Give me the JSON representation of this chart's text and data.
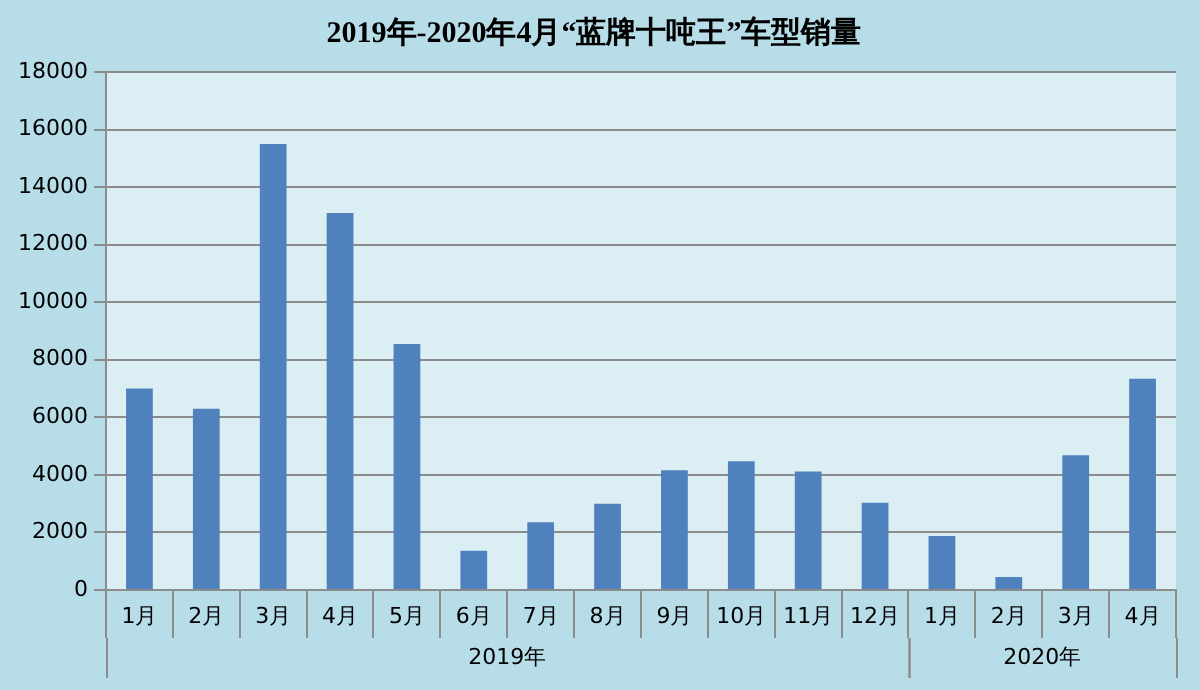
{
  "chart_data": {
    "type": "bar",
    "title": "2019年-2020年4月“蓝牌十吨王”车型销量",
    "categories": [
      "1月",
      "2月",
      "3月",
      "4月",
      "5月",
      "6月",
      "7月",
      "8月",
      "9月",
      "10月",
      "11月",
      "12月",
      "1月",
      "2月",
      "3月",
      "4月"
    ],
    "values": [
      7000,
      6300,
      15500,
      13100,
      8550,
      1360,
      2350,
      3000,
      4160,
      4470,
      4120,
      3030,
      1880,
      450,
      4680,
      7340
    ],
    "color": "#4f81bd",
    "ylim": [
      0,
      18000
    ],
    "yticks": [
      0,
      2000,
      4000,
      6000,
      8000,
      10000,
      12000,
      14000,
      16000,
      18000
    ],
    "grid": "y",
    "annotations": [
      "2019年",
      "2020年"
    ]
  }
}
